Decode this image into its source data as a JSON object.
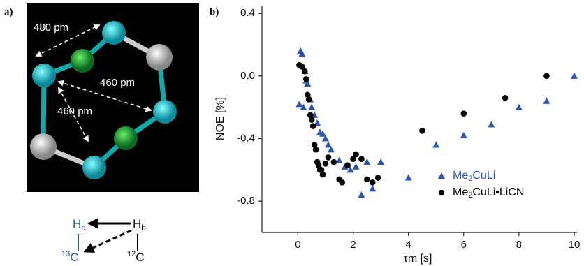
{
  "panel_a": {
    "label": "a)",
    "distances": [
      "480 pm",
      "460 pm",
      "460 pm"
    ],
    "diagram": {
      "ha": {
        "symbol": "H",
        "sub": "a"
      },
      "hb": {
        "symbol": "H",
        "sub": "b"
      },
      "c13": {
        "mass": "13",
        "symbol": "C"
      },
      "c12": {
        "mass": "12",
        "symbol": "C"
      }
    }
  },
  "chart_data": {
    "type": "scatter",
    "panel_label": "b)",
    "ylabel": "NOE [%]",
    "xlabel": "τm [s]",
    "xlim": [
      -1.3,
      10
    ],
    "xticks": [
      0,
      2,
      4,
      6,
      8,
      10
    ],
    "ylim": [
      -1.0,
      0.45
    ],
    "yticks": [
      0.4,
      {
        "value": 0,
        "label": "0.0"
      },
      -0.4,
      -0.8
    ],
    "series": [
      {
        "name": "Me2CuLi",
        "color": "#2a55b0",
        "marker": "triangle",
        "x": [
          0.05,
          0.1,
          0.15,
          0.2,
          0.25,
          0.3,
          0.35,
          0.45,
          0.5,
          0.6,
          0.7,
          0.8,
          0.9,
          1.0,
          1.1,
          1.2,
          1.5,
          1.7,
          1.9,
          2.1,
          2.3,
          2.5,
          2.7,
          3.0,
          4.0,
          5.0,
          6.0,
          7.0,
          8.0,
          9.0,
          10.0
        ],
        "values": [
          -0.18,
          0.16,
          0.14,
          -0.2,
          0.03,
          -0.03,
          -0.05,
          -0.15,
          -0.2,
          -0.25,
          -0.3,
          -0.36,
          -0.37,
          -0.4,
          -0.44,
          -0.47,
          -0.54,
          -0.58,
          -0.6,
          -0.58,
          -0.76,
          -0.55,
          -0.72,
          -0.55,
          -0.65,
          -0.44,
          -0.38,
          -0.31,
          -0.2,
          -0.16,
          0.0
        ]
      },
      {
        "name": "Me2CuLi•LiCN",
        "color": "#000000",
        "marker": "circle",
        "x": [
          0.05,
          0.15,
          0.25,
          0.3,
          0.35,
          0.4,
          0.45,
          0.5,
          0.55,
          0.6,
          0.65,
          0.7,
          0.75,
          0.8,
          0.85,
          0.9,
          1.0,
          1.1,
          1.3,
          1.5,
          1.6,
          1.8,
          2.0,
          2.1,
          2.3,
          2.5,
          2.7,
          2.9,
          4.5,
          6.0,
          7.5,
          9.0
        ],
        "values": [
          0.07,
          0.06,
          0.03,
          -0.02,
          -0.12,
          -0.15,
          -0.25,
          -0.28,
          -0.32,
          -0.44,
          -0.47,
          -0.55,
          -0.57,
          -0.6,
          -0.6,
          -0.63,
          -0.56,
          -0.52,
          -0.55,
          -0.66,
          -0.68,
          -0.57,
          -0.53,
          -0.5,
          -0.53,
          -0.66,
          -0.68,
          -0.65,
          -0.35,
          -0.24,
          -0.14,
          0.0
        ]
      }
    ]
  }
}
